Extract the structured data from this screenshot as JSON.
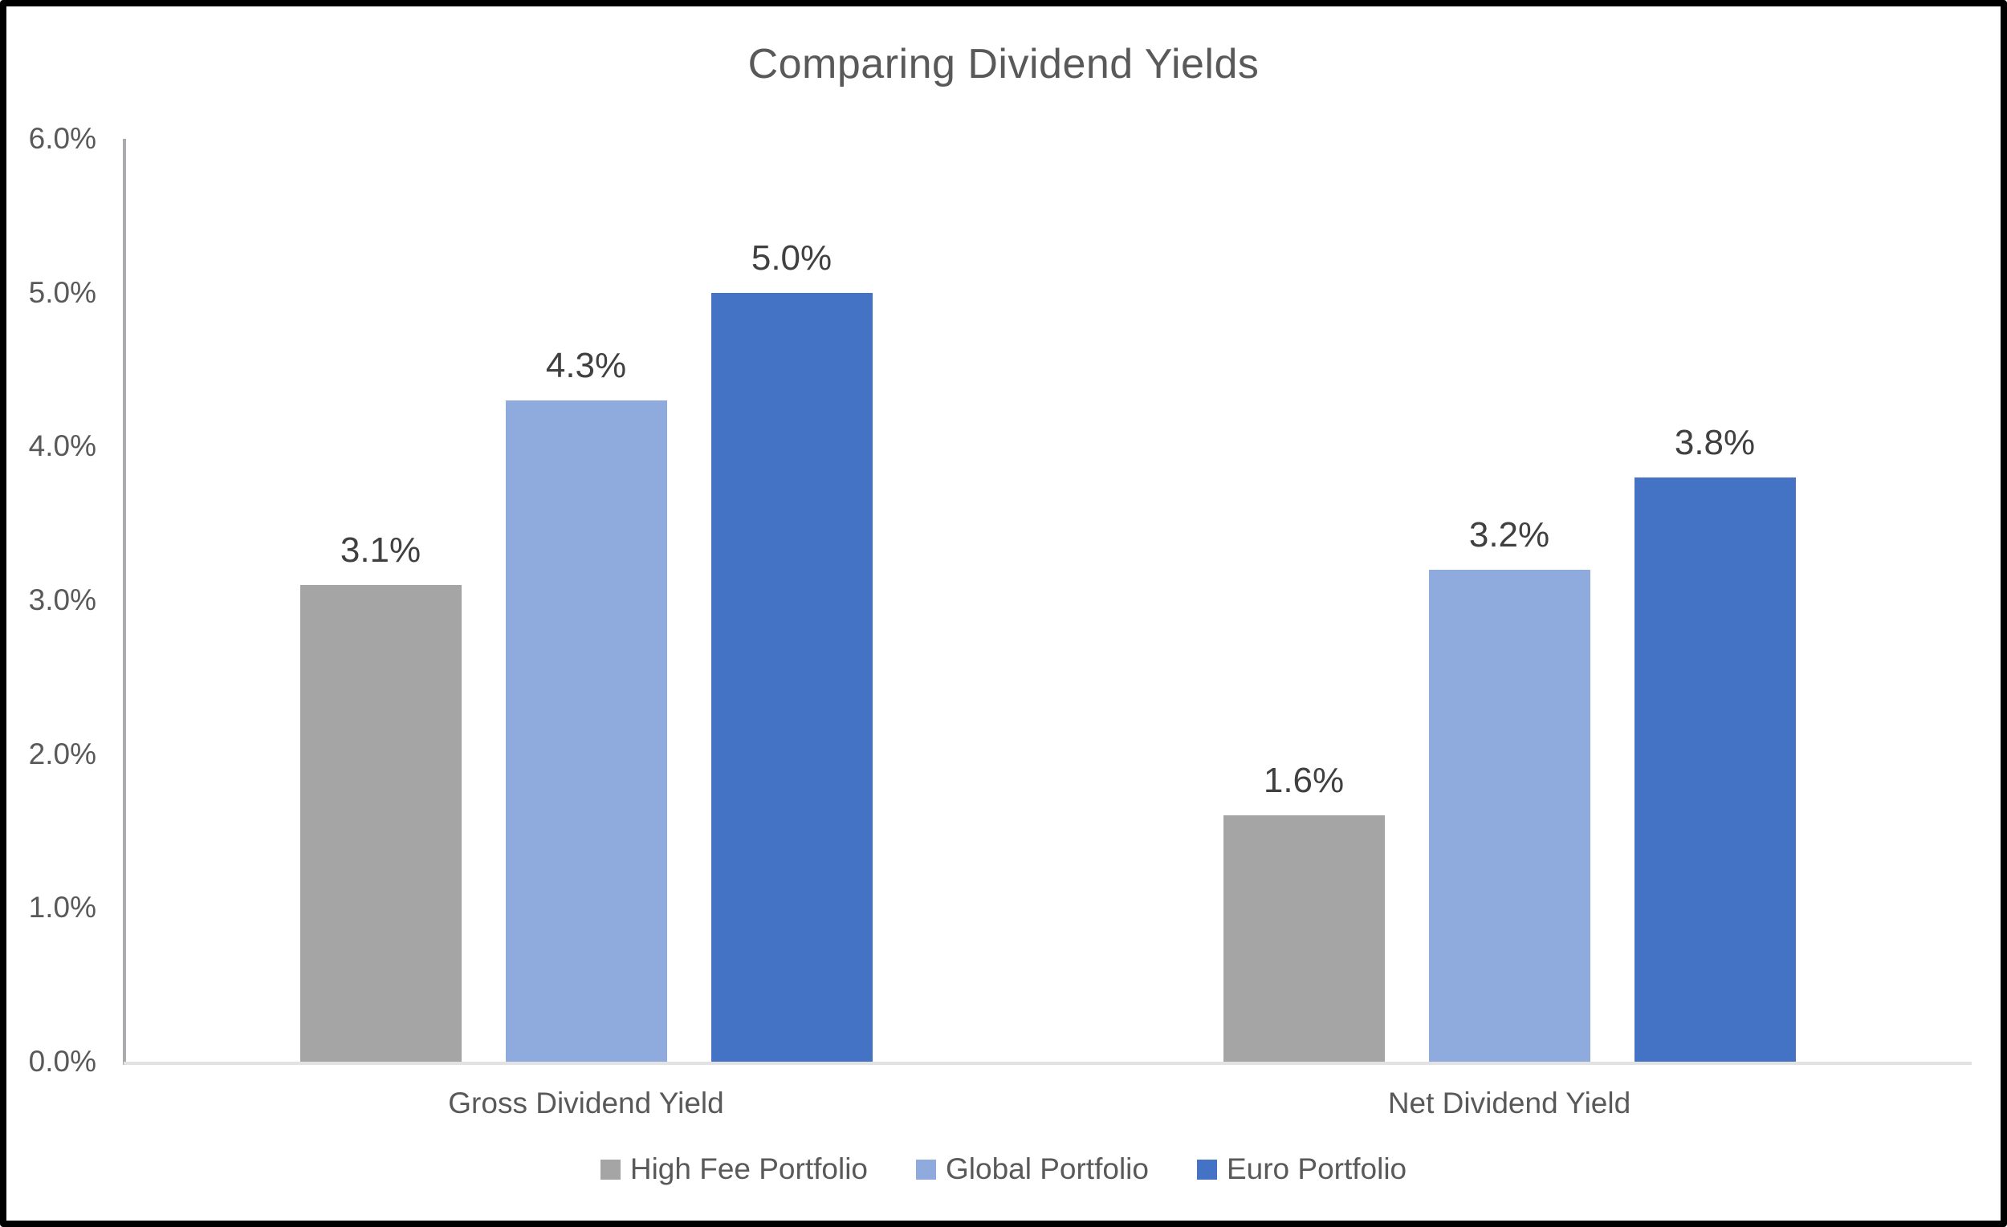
{
  "title": "Comparing Dividend Yields",
  "chart_data": {
    "type": "bar",
    "title": "Comparing Dividend Yields",
    "categories": [
      "Gross Dividend Yield",
      "Net Dividend Yield"
    ],
    "series": [
      {
        "name": "High Fee Portfolio",
        "color": "#A5A5A5",
        "values": [
          3.1,
          1.6
        ],
        "labels": [
          "3.1%",
          "1.6%"
        ]
      },
      {
        "name": "Global Portfolio",
        "color": "#8FAADC",
        "values": [
          4.3,
          3.2
        ],
        "labels": [
          "4.3%",
          "3.2%"
        ]
      },
      {
        "name": "Euro Portfolio",
        "color": "#4472C4",
        "values": [
          5.0,
          3.8
        ],
        "labels": [
          "5.0%",
          "3.8%"
        ]
      }
    ],
    "y_axis": {
      "min": 0,
      "max": 6,
      "tick_step": 1,
      "tick_labels": [
        "0.0%",
        "1.0%",
        "2.0%",
        "3.0%",
        "4.0%",
        "5.0%",
        "6.0%"
      ]
    },
    "xlabel": "",
    "ylabel": "",
    "grid": false,
    "legend_position": "bottom",
    "data_labels_shown": true,
    "colors": {
      "title_text": "#595959",
      "axis_text": "#595959",
      "data_label_text": "#404040",
      "y_axis_line": "#ACAAAE",
      "x_axis_line": "#E2E2E2",
      "background": "#FFFFFF",
      "border": "#000000"
    }
  }
}
